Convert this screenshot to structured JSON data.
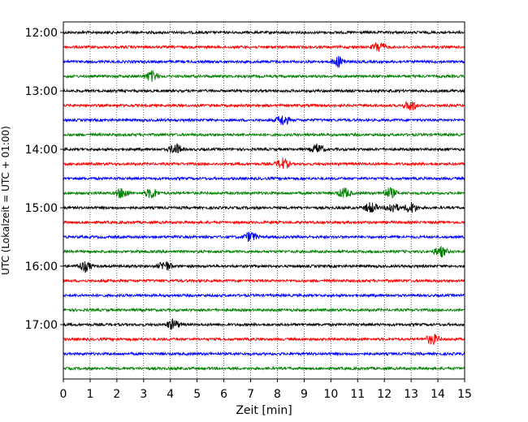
{
  "chart_data": {
    "type": "line",
    "title": "",
    "xlabel": "Zeit  [min]",
    "ylabel": "UTC (Lokalzeit = UTC + 01:00)",
    "xlim": [
      0,
      15
    ],
    "x_ticks": [
      "0",
      "1",
      "2",
      "3",
      "4",
      "5",
      "6",
      "7",
      "8",
      "9",
      "10",
      "11",
      "12",
      "13",
      "14",
      "15"
    ],
    "y_tick_labels": [
      "12:00",
      "13:00",
      "14:00",
      "15:00",
      "16:00",
      "17:00"
    ],
    "grid": "vertical dotted",
    "trace_interval_min": 15,
    "colors": [
      "#000000",
      "#ff0000",
      "#0000ff",
      "#008000"
    ],
    "series": [
      {
        "start": "12:00",
        "color": "#000000",
        "events": []
      },
      {
        "start": "12:15",
        "color": "#ff0000",
        "events": [
          11.8
        ]
      },
      {
        "start": "12:30",
        "color": "#0000ff",
        "events": [
          10.3
        ]
      },
      {
        "start": "12:45",
        "color": "#008000",
        "events": [
          3.3
        ]
      },
      {
        "start": "13:00",
        "color": "#000000",
        "events": []
      },
      {
        "start": "13:15",
        "color": "#ff0000",
        "events": [
          13.0
        ]
      },
      {
        "start": "13:30",
        "color": "#0000ff",
        "events": [
          8.2
        ]
      },
      {
        "start": "13:45",
        "color": "#008000",
        "events": []
      },
      {
        "start": "14:00",
        "color": "#000000",
        "events": [
          4.2,
          9.5
        ]
      },
      {
        "start": "14:15",
        "color": "#ff0000",
        "events": [
          8.2
        ]
      },
      {
        "start": "14:30",
        "color": "#0000ff",
        "events": []
      },
      {
        "start": "14:45",
        "color": "#008000",
        "events": [
          2.2,
          3.3,
          10.5,
          12.2
        ]
      },
      {
        "start": "15:00",
        "color": "#000000",
        "events": [
          11.5,
          12.3,
          13.0
        ]
      },
      {
        "start": "15:15",
        "color": "#ff0000",
        "events": []
      },
      {
        "start": "15:30",
        "color": "#0000ff",
        "events": [
          7.0
        ]
      },
      {
        "start": "15:45",
        "color": "#008000",
        "events": [
          14.1
        ]
      },
      {
        "start": "16:00",
        "color": "#000000",
        "events": [
          0.8,
          3.8
        ]
      },
      {
        "start": "16:15",
        "color": "#ff0000",
        "events": []
      },
      {
        "start": "16:30",
        "color": "#0000ff",
        "events": []
      },
      {
        "start": "16:45",
        "color": "#008000",
        "events": []
      },
      {
        "start": "17:00",
        "color": "#000000",
        "events": [
          4.1
        ]
      },
      {
        "start": "17:15",
        "color": "#ff0000",
        "events": [
          13.8
        ]
      },
      {
        "start": "17:30",
        "color": "#0000ff",
        "events": []
      },
      {
        "start": "17:45",
        "color": "#008000",
        "events": []
      }
    ]
  }
}
